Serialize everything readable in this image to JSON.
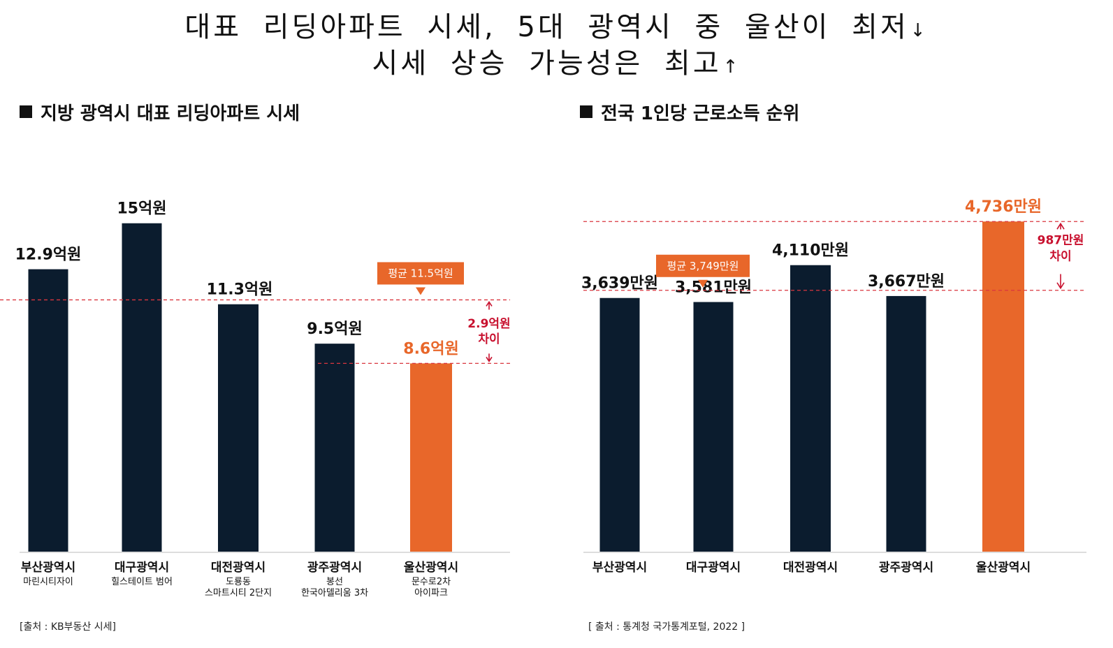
{
  "headline": {
    "line1": "대표 리딩아파트 시세, 5대 광역시 중 울산이 최저",
    "line1_arrow": "↓",
    "line2": "시세 상승 가능성은 최고",
    "line2_arrow": "↑"
  },
  "colors": {
    "bar": "#0b1c2e",
    "highlight": "#e8672a",
    "avg_line": "#d9363e",
    "diff_text": "#c8102e"
  },
  "chart_data": [
    {
      "type": "bar",
      "title": "지방 광역시 대표 리딩아파트 시세",
      "categories": [
        "부산광역시",
        "대구광역시",
        "대전광역시",
        "광주광역시",
        "울산광역시"
      ],
      "subcategories": [
        [
          "마린시티자이"
        ],
        [
          "힐스테이트 범어"
        ],
        [
          "도룡동",
          "스마트시티 2단지"
        ],
        [
          "봉선",
          "한국아델리움 3차"
        ],
        [
          "문수로2차",
          "아이파크"
        ]
      ],
      "values": [
        12.9,
        15,
        11.3,
        9.5,
        8.6
      ],
      "value_labels": [
        "12.9억원",
        "15억원",
        "11.3억원",
        "9.5억원",
        "8.6억원"
      ],
      "highlight_index": 4,
      "average": 11.5,
      "average_label": "평균 11.5억원",
      "difference_label": [
        "2.9억원",
        "차이"
      ],
      "ylim": [
        0,
        18.5
      ],
      "source": "[출처 : KB부동산 시세]"
    },
    {
      "type": "bar",
      "title": "전국 1인당 근로소득 순위",
      "categories": [
        "부산광역시",
        "대구광역시",
        "대전광역시",
        "광주광역시",
        "울산광역시"
      ],
      "values": [
        3639,
        3581,
        4110,
        3667,
        4736
      ],
      "value_labels": [
        "3,639만원",
        "3,581만원",
        "4,110만원",
        "3,667만원",
        "4,736만원"
      ],
      "highlight_index": 4,
      "average": 3749,
      "average_label": "평균 3,749만원",
      "difference_label": [
        "987만원",
        "차이"
      ],
      "ylim": [
        0,
        5750
      ],
      "source": "[ 출처 : 통계청 국가통계포털, 2022 ]"
    }
  ]
}
